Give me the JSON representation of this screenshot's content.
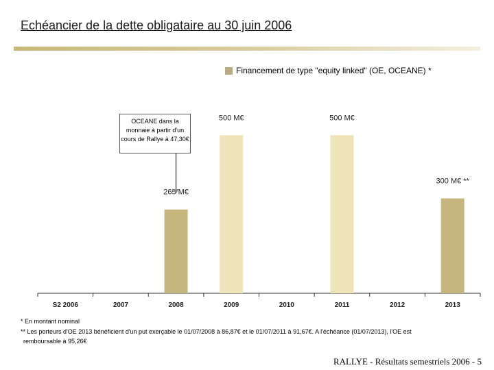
{
  "page": {
    "title": "Echéancier de la dette obligataire au 30 juin 2006",
    "footer": "RALLYE - Résultats semestriels 2006 - 5"
  },
  "legend": {
    "label": "Financement de type \"equity linked\" (OE, OCEANE) *"
  },
  "callout": {
    "text": "OCEANE dans la monnaie à partir d'un cours de Rallye à 47,30€"
  },
  "footnotes": {
    "line1": "* En montant nominal",
    "line2": "** Les porteurs d'OE 2013 bénéficient d'un put exerçable le 01/07/2008 à 86,87€ et le 01/07/2011 à 91,67€. A l'échéance (01/07/2013), l'OE est",
    "line3": "remboursable à 95,26€"
  },
  "colors": {
    "bar_dark": "#c7b57f",
    "bar_light": "#efe3b9",
    "axis": "#333333"
  },
  "chart_data": {
    "type": "bar",
    "categories": [
      "S2 2006",
      "2007",
      "2008",
      "2009",
      "2010",
      "2011",
      "2012",
      "2013"
    ],
    "values": [
      0,
      0,
      265,
      500,
      0,
      500,
      0,
      300
    ],
    "data_labels": [
      "",
      "",
      "265 M€",
      "500 M€",
      "",
      "500 M€",
      "",
      "300 M€ **"
    ],
    "bar_styles": [
      "none",
      "none",
      "dark",
      "light",
      "none",
      "light",
      "none",
      "dark"
    ],
    "ylim": [
      0,
      700
    ],
    "unit": "M€",
    "series_name": "Financement de type \"equity linked\" (OE, OCEANE) *"
  }
}
